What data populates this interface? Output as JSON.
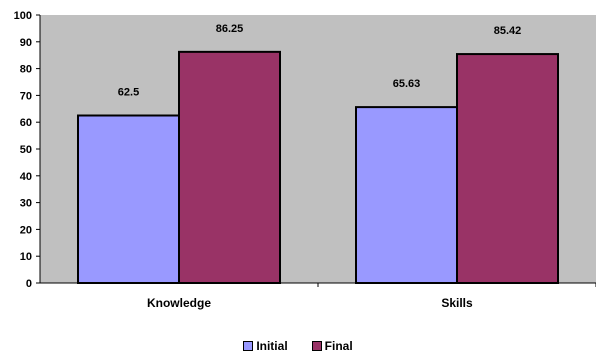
{
  "chart_data": {
    "type": "bar",
    "categories": [
      "Knowledge",
      "Skills"
    ],
    "series": [
      {
        "name": "Initial",
        "values": [
          62.5,
          65.63
        ],
        "color": "#9999ff"
      },
      {
        "name": "Final",
        "values": [
          86.25,
          85.42
        ],
        "color": "#993366"
      }
    ],
    "data_labels": [
      [
        "62.5",
        "65.63"
      ],
      [
        "86.25",
        "85.42"
      ]
    ],
    "ylim": [
      0,
      100
    ],
    "yticks": [
      0,
      10,
      20,
      30,
      40,
      50,
      60,
      70,
      80,
      90,
      100
    ],
    "grid": false,
    "plot_background": "#c0c0c0",
    "legend_position": "bottom"
  }
}
